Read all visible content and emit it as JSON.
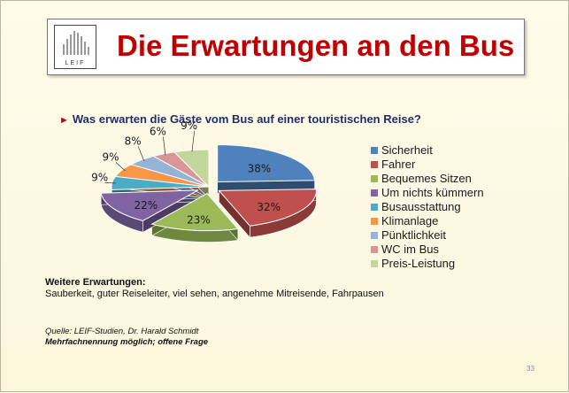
{
  "slide": {
    "title": "Die Erwartungen an den Bus",
    "logo_text": "LEIF",
    "question": "Was erwarten die Gäste vom Bus auf einer touristischen Reise?",
    "question_marker": "►",
    "further_heading": "Weitere Erwartungen:",
    "further_text": "Sauberkeit, guter Reiseleiter, viel sehen, angenehme Mitreisende, Fahrpausen",
    "source_line1": "Quelle: LEIF-Studien,  Dr. Harald Schmidt",
    "source_line2": "Mehrfachnennung möglich; offene Frage",
    "page_number": "33"
  },
  "colors": {
    "title": "#c00000",
    "question": "#1f2d6e"
  },
  "chart_data": {
    "type": "pie",
    "title": "Was erwarten die Gäste vom Bus auf einer touristischen Reise?",
    "unit": "%",
    "categories": [
      "Sicherheit",
      "Fahrer",
      "Bequemes Sitzen",
      "Um nichts kümmern",
      "Busausstattung",
      "Klimanlage",
      "Pünktlichkeit",
      "WC im Bus",
      "Preis-Leistung"
    ],
    "values": [
      38,
      32,
      23,
      22,
      9,
      9,
      8,
      6,
      9
    ],
    "labels": [
      "38%",
      "32%",
      "23%",
      "22%",
      "9%",
      "9%",
      "8%",
      "6%",
      "9%"
    ],
    "colors": [
      "#4f81bd",
      "#c0504d",
      "#9bbb59",
      "#8064a2",
      "#4bacc6",
      "#f79646",
      "#95b3d7",
      "#d99694",
      "#c3d69b"
    ],
    "exploded": [
      0,
      1,
      2,
      3
    ],
    "legend_position": "right"
  }
}
